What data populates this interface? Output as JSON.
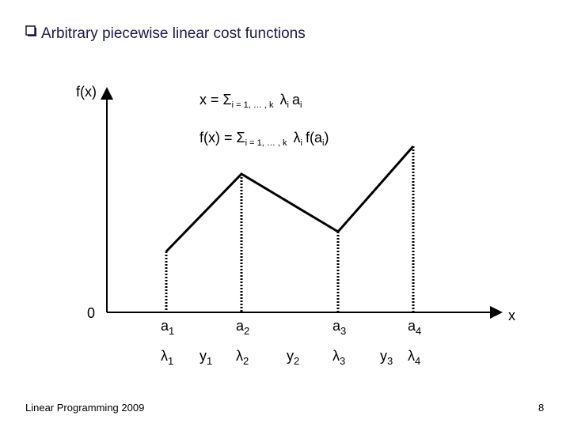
{
  "header": {
    "title": "Arbitrary piecewise linear cost functions"
  },
  "axes": {
    "y_label": "f(x)",
    "origin": "0",
    "x_label": "x"
  },
  "formulas": [
    {
      "lhs": "x = Σ",
      "range": "i = 1, … , k",
      "lambda": "λ",
      "lambda_index": "i",
      "term": "a",
      "term_index": "i"
    },
    {
      "lhs": "f(x) = Σ",
      "range": "i = 1, … , k",
      "lambda": "λ",
      "lambda_index": "i",
      "term": "f(a",
      "term_index": "i",
      "term_end": ")"
    }
  ],
  "breakpoints": [
    {
      "label": "a",
      "index": "1",
      "weight": "λ",
      "weight_index": "1"
    },
    {
      "label": "a",
      "index": "2",
      "weight": "λ",
      "weight_index": "2"
    },
    {
      "label": "a",
      "index": "3",
      "weight": "λ",
      "weight_index": "3"
    },
    {
      "label": "a",
      "index": "4",
      "weight": "λ",
      "weight_index": "4"
    }
  ],
  "segments": [
    {
      "label": "y",
      "index": "1"
    },
    {
      "label": "y",
      "index": "2"
    },
    {
      "label": "y",
      "index": "3"
    }
  ],
  "footer": {
    "left": "Linear Programming 2009",
    "page": "8"
  }
}
